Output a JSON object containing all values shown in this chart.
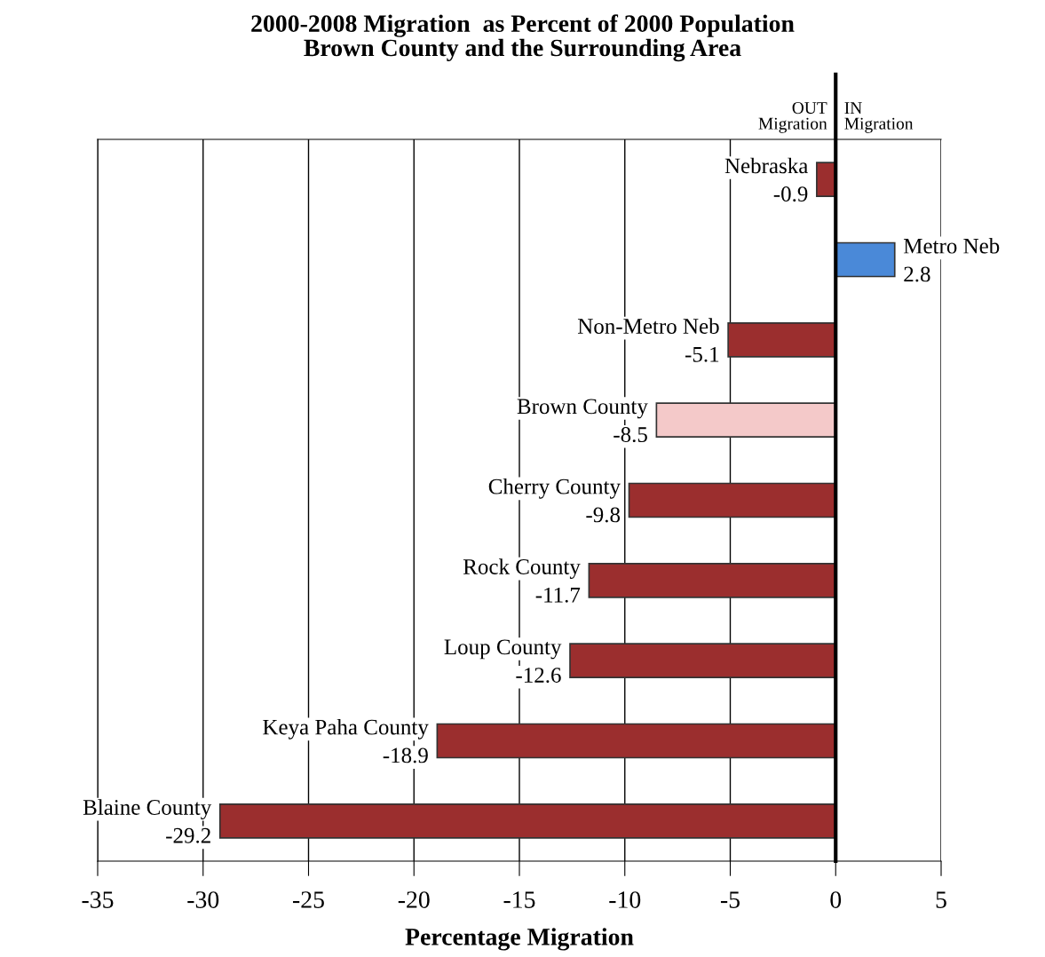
{
  "chart_data": {
    "type": "bar",
    "orientation": "horizontal",
    "title": "2000-2008 Migration  as Percent of 2000 Population\nBrown County and the Surrounding Area",
    "xlabel": "Percentage Migration",
    "categories": [
      "Nebraska",
      "Metro Neb",
      "Non-Metro Neb",
      "Brown County",
      "Cherry County",
      "Rock County",
      "Loup County",
      "Keya Paha County",
      "Blaine County"
    ],
    "values": [
      -0.9,
      2.8,
      -5.1,
      -8.5,
      -9.8,
      -11.7,
      -12.6,
      -18.9,
      -29.2
    ],
    "colors": [
      "#9b2e2e",
      "#4a89d8",
      "#9b2e2e",
      "#f4c9c9",
      "#9b2e2e",
      "#9b2e2e",
      "#9b2e2e",
      "#9b2e2e",
      "#9b2e2e"
    ],
    "data_labels": true,
    "xlim": [
      -35,
      5
    ],
    "xticks": [
      -35,
      -30,
      -25,
      -20,
      -15,
      -10,
      -5,
      0,
      5
    ],
    "grid": "x",
    "tick_labels": "x",
    "ref_lines": [
      {
        "axis": "x",
        "value": 0,
        "color": "#000000"
      }
    ],
    "annotations": [
      "OUT\nMigration",
      "IN\nMigration"
    ]
  }
}
